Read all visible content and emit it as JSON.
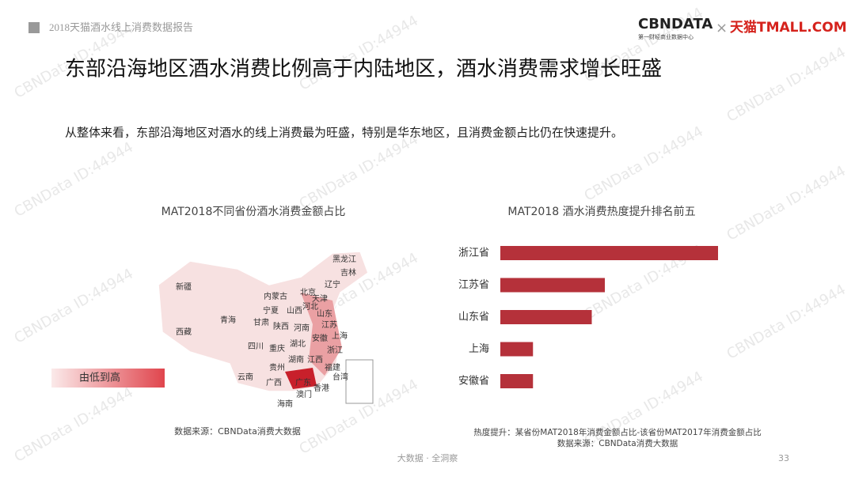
{
  "header": {
    "report": "2018天猫酒水线上消费数据报告",
    "logo": "CBNDATA",
    "logo_sub": "第一财经商业数据中心",
    "times": "×",
    "partner": "天猫TMALL.COM"
  },
  "watermark": "CBNData ID:44944",
  "headline": "东部沿海地区酒水消费比例高于内陆地区，酒水消费需求增长旺盛",
  "summary": "从整体来看，东部沿海地区对酒水的线上消费最为旺盛，特别是华东地区，且消费金额占比仍在快速提升。",
  "map": {
    "title": "MAT2018不同省份酒水消费金额占比",
    "labels": [
      "黑龙江",
      "吉林",
      "辽宁",
      "新疆",
      "内蒙古",
      "北京",
      "天津",
      "河北",
      "宁夏",
      "山西",
      "山东",
      "青海",
      "甘肃",
      "陕西",
      "河南",
      "江苏",
      "西藏",
      "湖北",
      "安徽",
      "上海",
      "四川",
      "重庆",
      "浙江",
      "贵州",
      "湖南",
      "江西",
      "福建",
      "云南",
      "广西",
      "广东",
      "台湾",
      "香港",
      "澳门",
      "海南"
    ],
    "legend": "由低到高",
    "source": "数据来源：CBNData消费大数据"
  },
  "chart_data": {
    "type": "bar",
    "orientation": "horizontal",
    "title": "MAT2018 酒水消费热度提升排名前五",
    "categories": [
      "浙江省",
      "江苏省",
      "山东省",
      "上海",
      "安徽省"
    ],
    "values": [
      100,
      48,
      42,
      15,
      15
    ],
    "color": "#b5313a",
    "note": "热度提升：某省份MAT2018年消费金额占比-该省份MAT2017年消费金额占比",
    "source": "数据来源：CBNData消费大数据"
  },
  "footer": {
    "tagline": "大数据 · 全洞察",
    "page": "33"
  }
}
